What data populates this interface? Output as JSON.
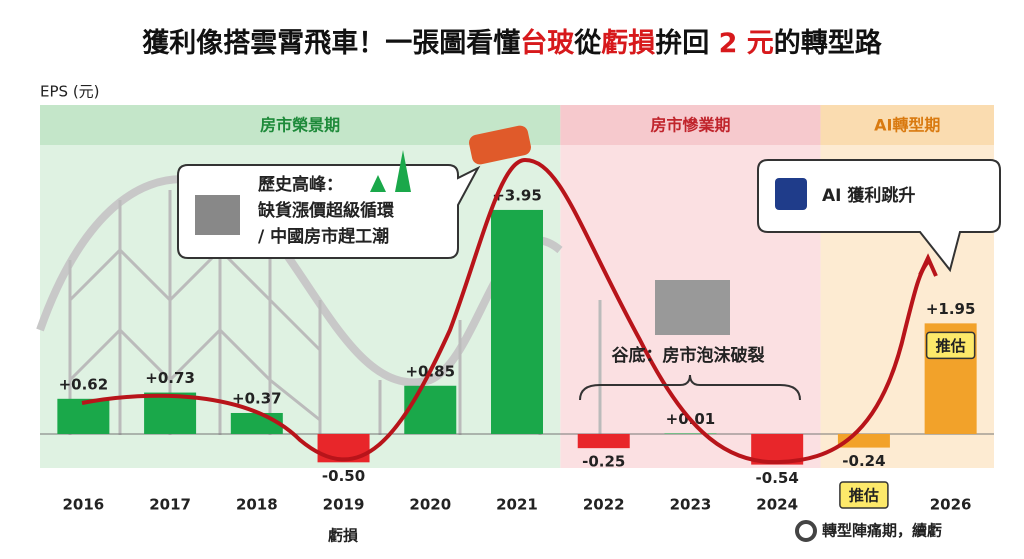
{
  "chart_data": {
    "type": "bar",
    "title_parts": [
      {
        "text": "獲利像搭雲霄飛車！一張圖看懂",
        "highlight": false
      },
      {
        "text": "台玻",
        "highlight": true
      },
      {
        "text": "從",
        "highlight": false
      },
      {
        "text": "虧損",
        "highlight": true
      },
      {
        "text": "拚回 ",
        "highlight": false
      },
      {
        "text": "2 元",
        "highlight": true
      },
      {
        "text": "的轉型路",
        "highlight": false
      }
    ],
    "y_label": "EPS (元)",
    "categories": [
      "2016",
      "2017",
      "2018",
      "2019",
      "2020",
      "2021",
      "2022",
      "2023",
      "2024",
      null,
      "2026"
    ],
    "values": [
      0.62,
      0.73,
      0.37,
      -0.5,
      0.85,
      3.95,
      -0.25,
      0.01,
      -0.54,
      -0.24,
      1.95
    ],
    "value_labels": [
      "+0.62",
      "+0.73",
      "+0.37",
      "-0.50",
      "+0.85",
      "+3.95",
      "-0.25",
      "+0.01",
      "-0.54",
      "-0.24",
      "+1.95"
    ],
    "estimate": [
      false,
      false,
      false,
      false,
      false,
      false,
      false,
      false,
      false,
      true,
      true
    ],
    "estimate_label": "推估",
    "colors": {
      "positive": "#1aa84a",
      "negative": "#e8262a",
      "estimate": "#f2a22a"
    },
    "ylim": [
      -0.6,
      5.8
    ],
    "phases": [
      "房市榮景期",
      "房市慘業期",
      "AI轉型期"
    ],
    "annotations": {
      "peak": [
        "歷史高峰：",
        "缺貨漲價超級循環",
        "/ 中國房市趕工潮"
      ],
      "trough": "谷底：房市泡沫破裂",
      "ai": "AI 獲利跳升",
      "loss": "虧損",
      "pain": "轉型陣痛期，續虧"
    }
  }
}
